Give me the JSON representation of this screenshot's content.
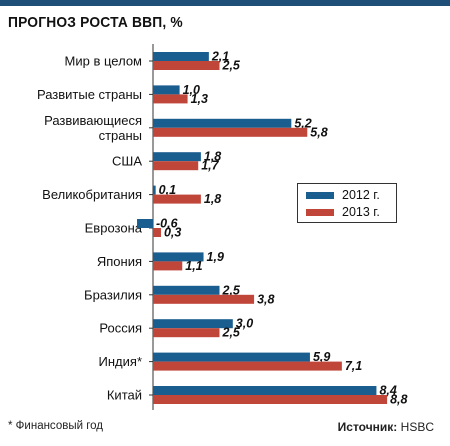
{
  "title": "ПРОГНОЗ РОСТА ВВП, %",
  "footnote": "* Финансовый год",
  "source_label": "Источник:",
  "source_value": "HSBC",
  "colors": {
    "series_2012": "#1a5d8f",
    "series_2013": "#c0463a",
    "axis": "#333333",
    "top_bar": "#1f4e79"
  },
  "chart_data": {
    "type": "bar",
    "orientation": "horizontal",
    "title": "ПРОГНОЗ РОСТА ВВП, %",
    "categories": [
      "Мир в целом",
      "Развитые страны",
      "Развивающиеся страны",
      "США",
      "Великобритания",
      "Еврозона",
      "Япония",
      "Бразилия",
      "Россия",
      "Индия*",
      "Китай"
    ],
    "series": [
      {
        "name": "2012 г.",
        "values": [
          2.1,
          1.0,
          5.2,
          1.8,
          0.1,
          -0.6,
          1.9,
          2.5,
          3.0,
          5.9,
          8.4
        ],
        "labels": [
          "2,1",
          "1,0",
          "5,2",
          "1,8",
          "0,1",
          "-0,6",
          "1,9",
          "2,5",
          "3,0",
          "5,9",
          "8,4"
        ]
      },
      {
        "name": "2013 г.",
        "values": [
          2.5,
          1.3,
          5.8,
          1.7,
          1.8,
          0.3,
          1.1,
          3.8,
          2.5,
          7.1,
          8.8
        ],
        "labels": [
          "2,5",
          "1,3",
          "5,8",
          "1,7",
          "1,8",
          "0,3",
          "1,1",
          "3,8",
          "2,5",
          "7,1",
          "8,8"
        ]
      }
    ],
    "legend": "right-middle",
    "grid": false
  }
}
